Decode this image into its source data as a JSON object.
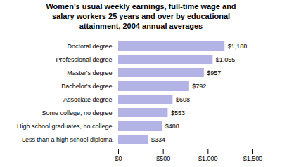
{
  "chart_data": {
    "type": "bar",
    "orientation": "horizontal",
    "title": "Women's usual weekly earnings, full-time wage and\nsalary workers 25 years and over by educational\nattainment, 2004 annual averages",
    "categories": [
      "Less than a high school diploma",
      "High school graduates, no college",
      "Some college, no degree",
      "Associate degree",
      "Bachelor's degree",
      "Master's degree",
      "Professional degree",
      "Doctoral degree"
    ],
    "values": [
      334,
      488,
      553,
      608,
      792,
      957,
      1055,
      1188
    ],
    "value_labels": [
      "$334",
      "$488",
      "$553",
      "$608",
      "$792",
      "$957",
      "$1,055",
      "$1,188"
    ],
    "data_labels": true,
    "color": "#b3b3e6",
    "xlim": [
      0,
      1500
    ],
    "xticks": [
      {
        "value": 0,
        "label": "$0"
      },
      {
        "value": 500,
        "label": "$500"
      },
      {
        "value": 1000,
        "label": "$1,000"
      },
      {
        "value": 1500,
        "label": "$1,500"
      }
    ],
    "grid": false
  }
}
